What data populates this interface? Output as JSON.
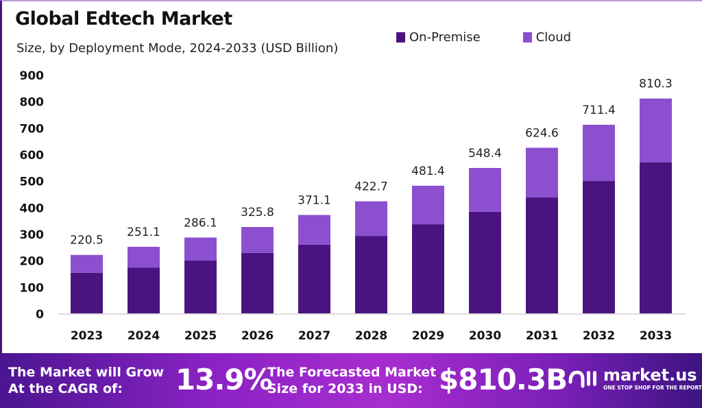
{
  "chart_data": {
    "type": "bar",
    "stacked": true,
    "title": "Global Edtech Market",
    "subtitle": "Size, by Deployment Mode, 2024-2033 (USD Billion)",
    "categories": [
      "2023",
      "2024",
      "2025",
      "2026",
      "2027",
      "2028",
      "2029",
      "2030",
      "2031",
      "2032",
      "2033"
    ],
    "series": [
      {
        "name": "On-Premise",
        "color": "#4a1480",
        "values": [
          153,
          173,
          199,
          228,
          259,
          292,
          336,
          383,
          437,
          499,
          569
        ]
      },
      {
        "name": "Cloud",
        "color": "#8c4fd0",
        "values": [
          67.5,
          78.1,
          87.1,
          97.8,
          112.1,
          130.7,
          145.4,
          165.4,
          187.6,
          212.4,
          241.3
        ]
      }
    ],
    "totals": [
      "220.5",
      "251.1",
      "286.1",
      "325.8",
      "371.1",
      "422.7",
      "481.4",
      "548.4",
      "624.6",
      "711.4",
      "810.3"
    ],
    "yticks": [
      0,
      100,
      200,
      300,
      400,
      500,
      600,
      700,
      800,
      900
    ],
    "ylim": [
      0,
      900
    ],
    "grid": false,
    "legend_position": "top-right"
  },
  "footer": {
    "cagr_label_1": "The Market will Grow",
    "cagr_label_2": "At the CAGR of:",
    "cagr_value": "13.9%",
    "forecast_label_1": "The Forecasted Market",
    "forecast_label_2": "Size for 2033 in USD:",
    "forecast_value": "$810.3B",
    "brand": "market.us",
    "brand_tagline": "ONE STOP SHOP FOR THE REPORTS"
  }
}
